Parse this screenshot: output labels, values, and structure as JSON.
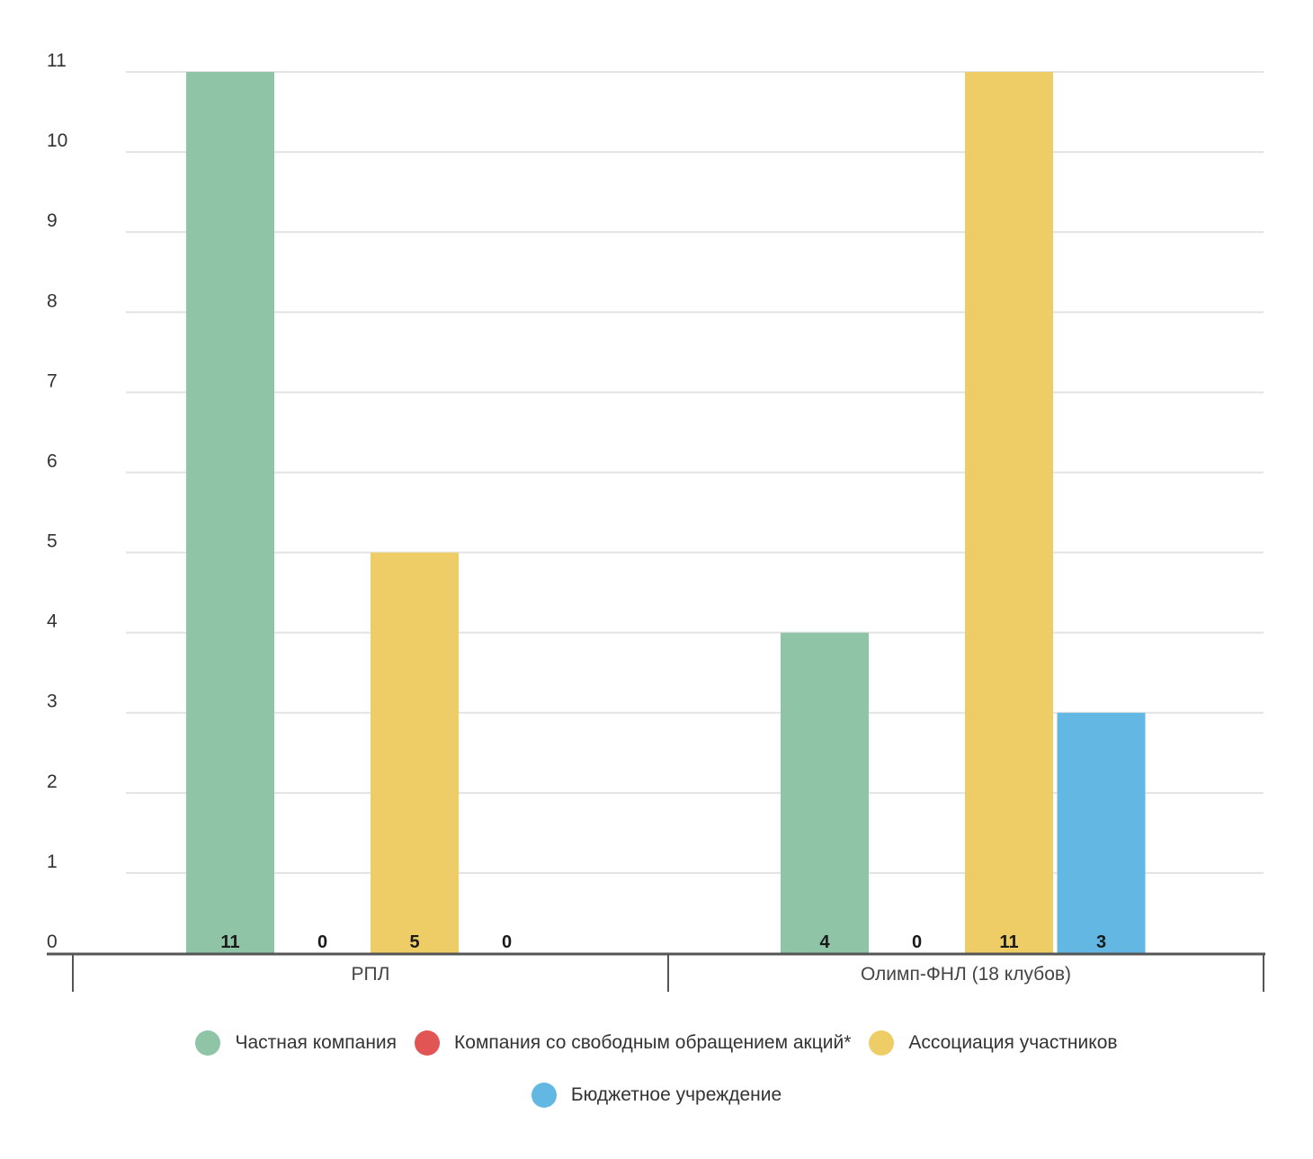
{
  "chart_data": {
    "type": "bar",
    "categories": [
      "РПЛ",
      "Олимп-ФНЛ (18 клубов)"
    ],
    "series": [
      {
        "name": "Частная компания",
        "values": [
          11,
          4
        ],
        "color": "#8fc5a6"
      },
      {
        "name": "Компания со свободным обращением акций*",
        "values": [
          0,
          0
        ],
        "color": "#e25555"
      },
      {
        "name": "Ассоциация участников",
        "values": [
          5,
          11
        ],
        "color": "#efcd66"
      },
      {
        "name": "Бюджетное учреждение",
        "values": [
          0,
          3
        ],
        "color": "#62b8e3"
      }
    ],
    "yticks": [
      0,
      1,
      2,
      3,
      4,
      5,
      6,
      7,
      8,
      9,
      10,
      11
    ],
    "ylim": [
      0,
      11
    ],
    "grid": true,
    "legend_position": "bottom"
  }
}
